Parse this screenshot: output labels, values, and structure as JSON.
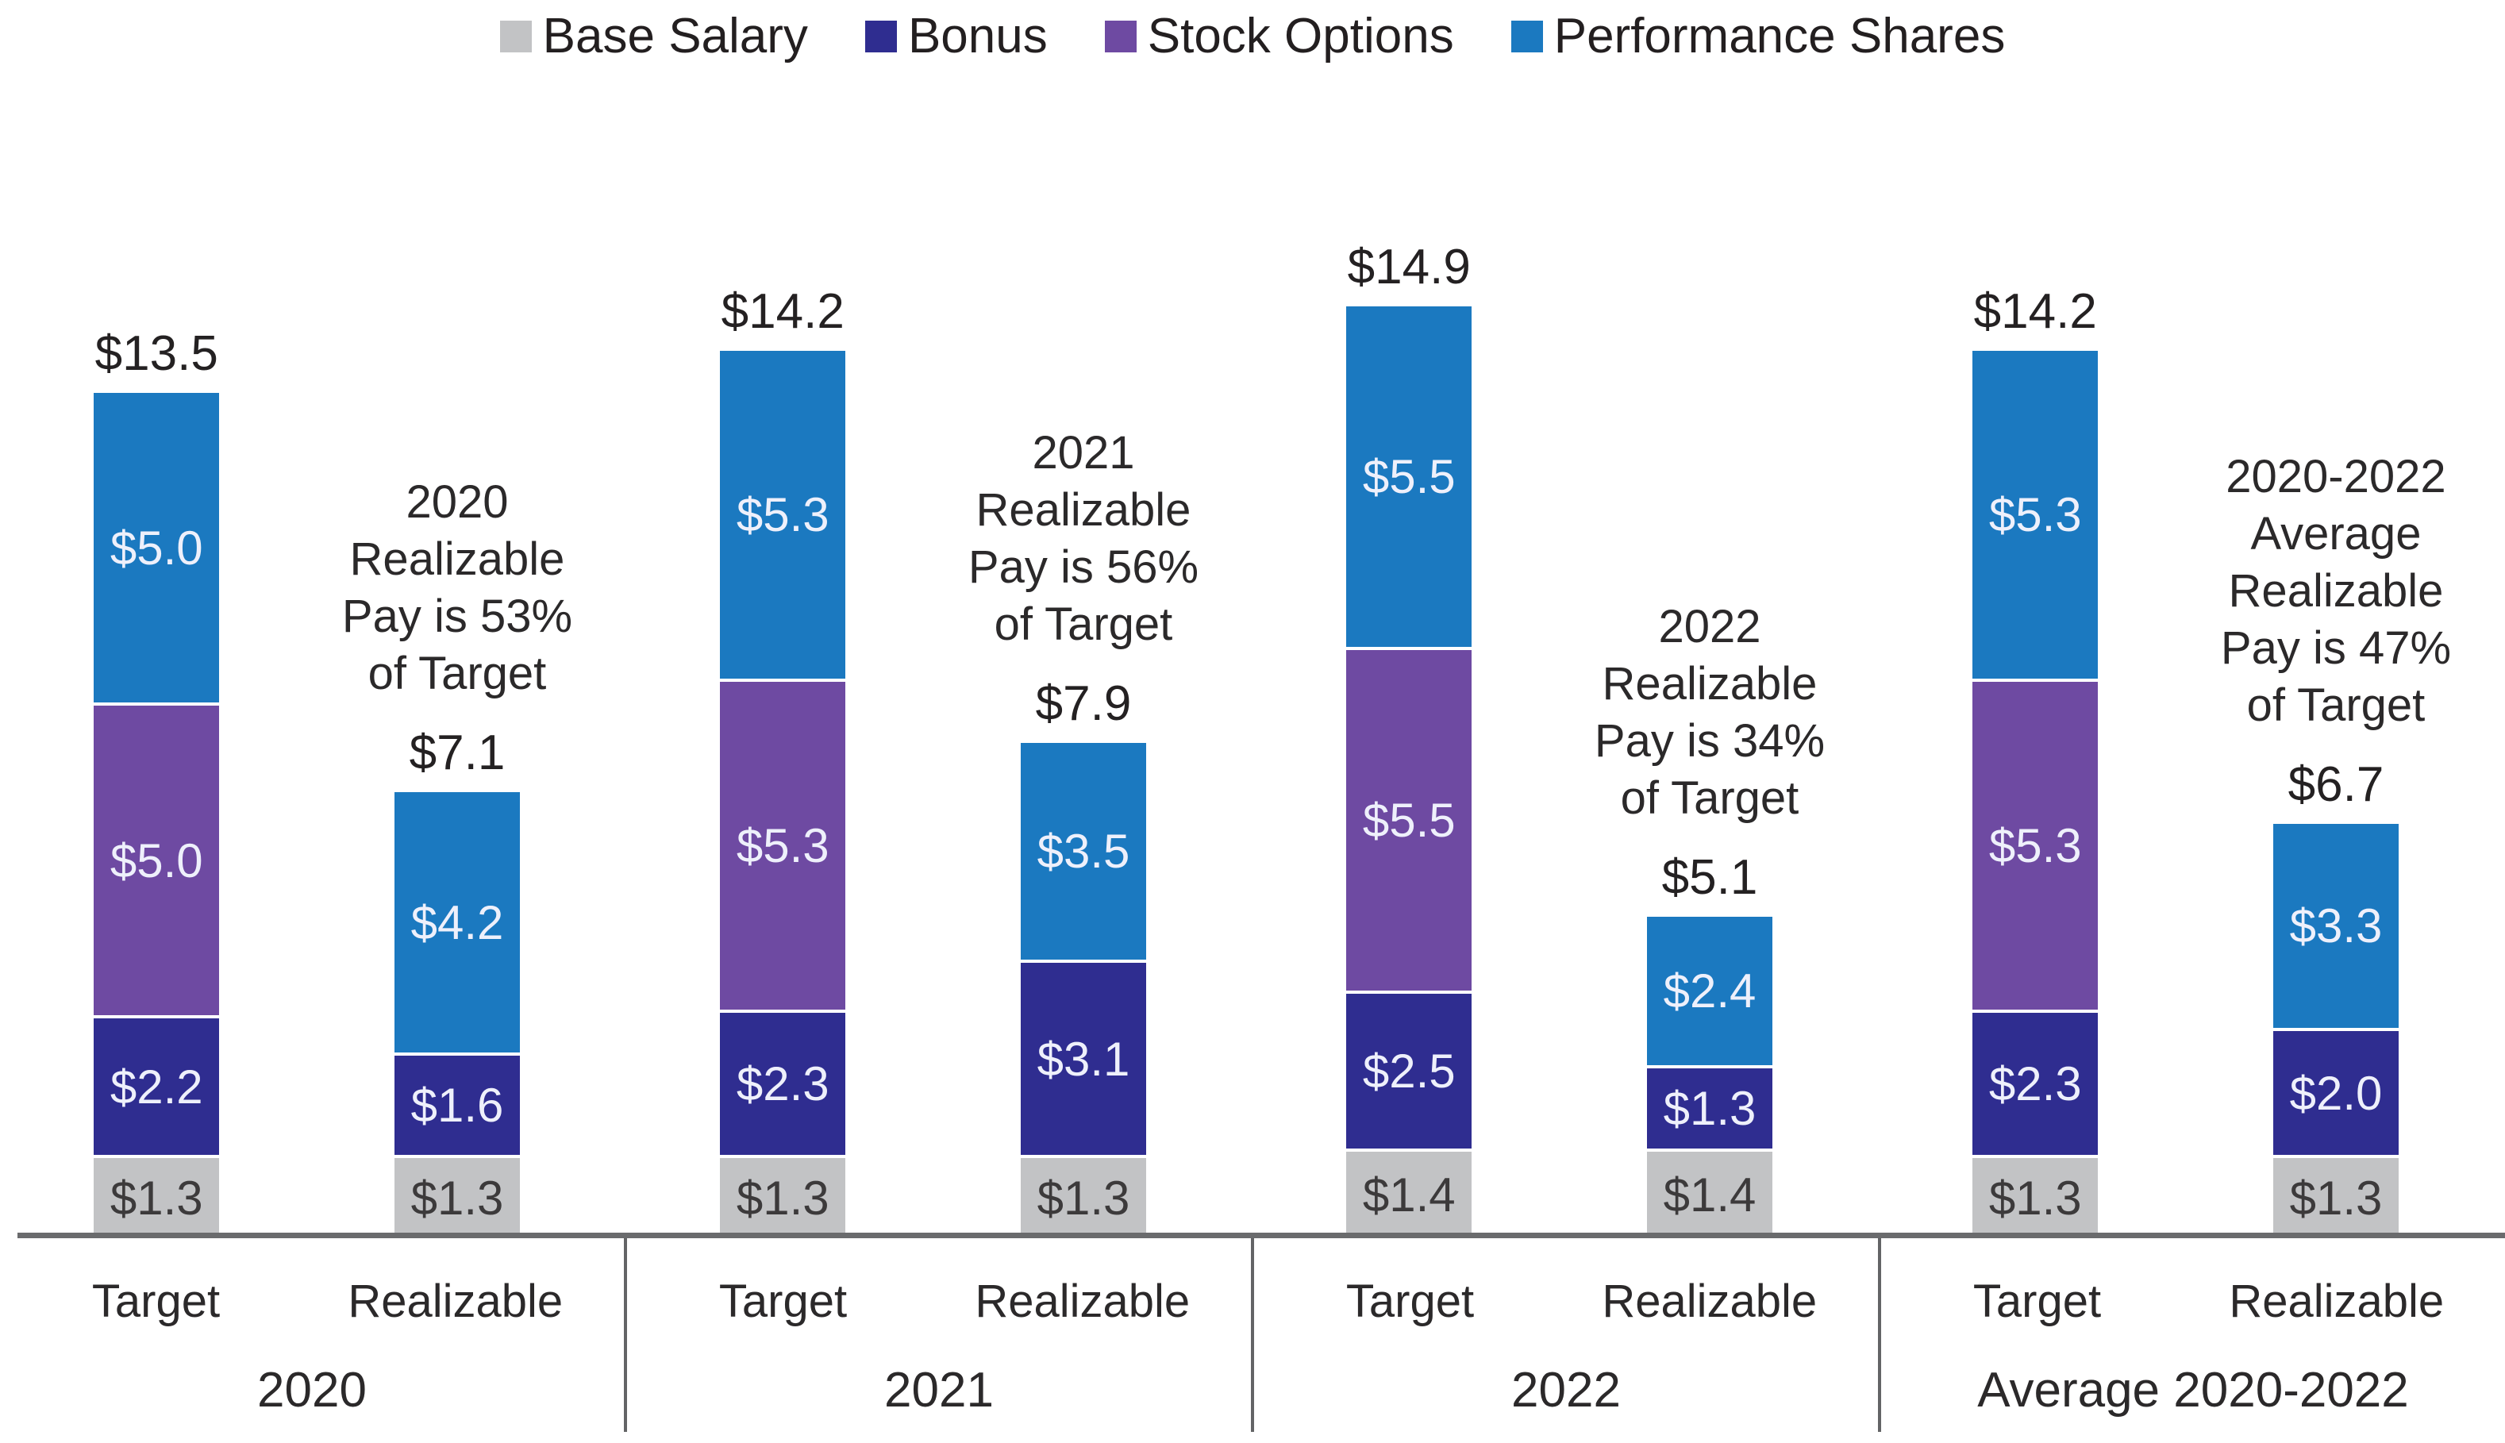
{
  "legend": {
    "items": [
      {
        "key": "base_salary",
        "label": "Base Salary"
      },
      {
        "key": "bonus",
        "label": "Bonus"
      },
      {
        "key": "stock_options",
        "label": "Stock Options"
      },
      {
        "key": "performance_shares",
        "label": "Performance Shares"
      }
    ]
  },
  "colors": {
    "base_salary": "#c2c3c5",
    "bonus": "#2f2d90",
    "stock_options": "#6e4aa2",
    "performance_shares": "#1b79c0",
    "axis_line": "#6a6b6d",
    "text": "#2b292a"
  },
  "chart_data": {
    "type": "bar",
    "stacked": true,
    "grid": false,
    "legend_position": "top",
    "series_order_bottom_to_top": [
      "base_salary",
      "bonus",
      "stock_options",
      "performance_shares"
    ],
    "bar_category_labels": [
      "Target",
      "Realizable"
    ],
    "groups": [
      {
        "group_label": "2020",
        "annotation_lines": [
          "2020",
          "Realizable",
          "Pay is 53%",
          "of Target"
        ],
        "bars": [
          {
            "label": "Target",
            "total": 13.5,
            "total_label": "$13.5",
            "segments": [
              {
                "key": "base_salary",
                "value": 1.3,
                "label": "$1.3"
              },
              {
                "key": "bonus",
                "value": 2.2,
                "label": "$2.2"
              },
              {
                "key": "stock_options",
                "value": 5.0,
                "label": "$5.0"
              },
              {
                "key": "performance_shares",
                "value": 5.0,
                "label": "$5.0"
              }
            ]
          },
          {
            "label": "Realizable",
            "total": 7.1,
            "total_label": "$7.1",
            "segments": [
              {
                "key": "base_salary",
                "value": 1.3,
                "label": "$1.3"
              },
              {
                "key": "bonus",
                "value": 1.6,
                "label": "$1.6"
              },
              {
                "key": "performance_shares",
                "value": 4.2,
                "label": "$4.2"
              }
            ]
          }
        ]
      },
      {
        "group_label": "2021",
        "annotation_lines": [
          "2021",
          "Realizable",
          "Pay is 56%",
          "of Target"
        ],
        "bars": [
          {
            "label": "Target",
            "total": 14.2,
            "total_label": "$14.2",
            "segments": [
              {
                "key": "base_salary",
                "value": 1.3,
                "label": "$1.3"
              },
              {
                "key": "bonus",
                "value": 2.3,
                "label": "$2.3"
              },
              {
                "key": "stock_options",
                "value": 5.3,
                "label": "$5.3"
              },
              {
                "key": "performance_shares",
                "value": 5.3,
                "label": "$5.3"
              }
            ]
          },
          {
            "label": "Realizable",
            "total": 7.9,
            "total_label": "$7.9",
            "segments": [
              {
                "key": "base_salary",
                "value": 1.3,
                "label": "$1.3"
              },
              {
                "key": "bonus",
                "value": 3.1,
                "label": "$3.1"
              },
              {
                "key": "performance_shares",
                "value": 3.5,
                "label": "$3.5"
              }
            ]
          }
        ]
      },
      {
        "group_label": "2022",
        "annotation_lines": [
          "2022",
          "Realizable",
          "Pay is 34%",
          "of Target"
        ],
        "bars": [
          {
            "label": "Target",
            "total": 14.9,
            "total_label": "$14.9",
            "segments": [
              {
                "key": "base_salary",
                "value": 1.4,
                "label": "$1.4"
              },
              {
                "key": "bonus",
                "value": 2.5,
                "label": "$2.5"
              },
              {
                "key": "stock_options",
                "value": 5.5,
                "label": "$5.5"
              },
              {
                "key": "performance_shares",
                "value": 5.5,
                "label": "$5.5"
              }
            ]
          },
          {
            "label": "Realizable",
            "total": 5.1,
            "total_label": "$5.1",
            "segments": [
              {
                "key": "base_salary",
                "value": 1.4,
                "label": "$1.4"
              },
              {
                "key": "bonus",
                "value": 1.3,
                "label": "$1.3"
              },
              {
                "key": "performance_shares",
                "value": 2.4,
                "label": "$2.4"
              }
            ]
          }
        ]
      },
      {
        "group_label": "Average 2020-2022",
        "annotation_lines": [
          "2020-2022",
          "Average",
          "Realizable",
          "Pay is 47%",
          "of Target"
        ],
        "bars": [
          {
            "label": "Target",
            "total": 14.2,
            "total_label": "$14.2",
            "segments": [
              {
                "key": "base_salary",
                "value": 1.3,
                "label": "$1.3"
              },
              {
                "key": "bonus",
                "value": 2.3,
                "label": "$2.3"
              },
              {
                "key": "stock_options",
                "value": 5.3,
                "label": "$5.3"
              },
              {
                "key": "performance_shares",
                "value": 5.3,
                "label": "$5.3"
              }
            ]
          },
          {
            "label": "Realizable",
            "total": 6.7,
            "total_label": "$6.7",
            "segments": [
              {
                "key": "base_salary",
                "value": 1.3,
                "label": "$1.3"
              },
              {
                "key": "bonus",
                "value": 2.0,
                "label": "$2.0"
              },
              {
                "key": "performance_shares",
                "value": 3.3,
                "label": "$3.3"
              }
            ]
          }
        ]
      }
    ]
  }
}
